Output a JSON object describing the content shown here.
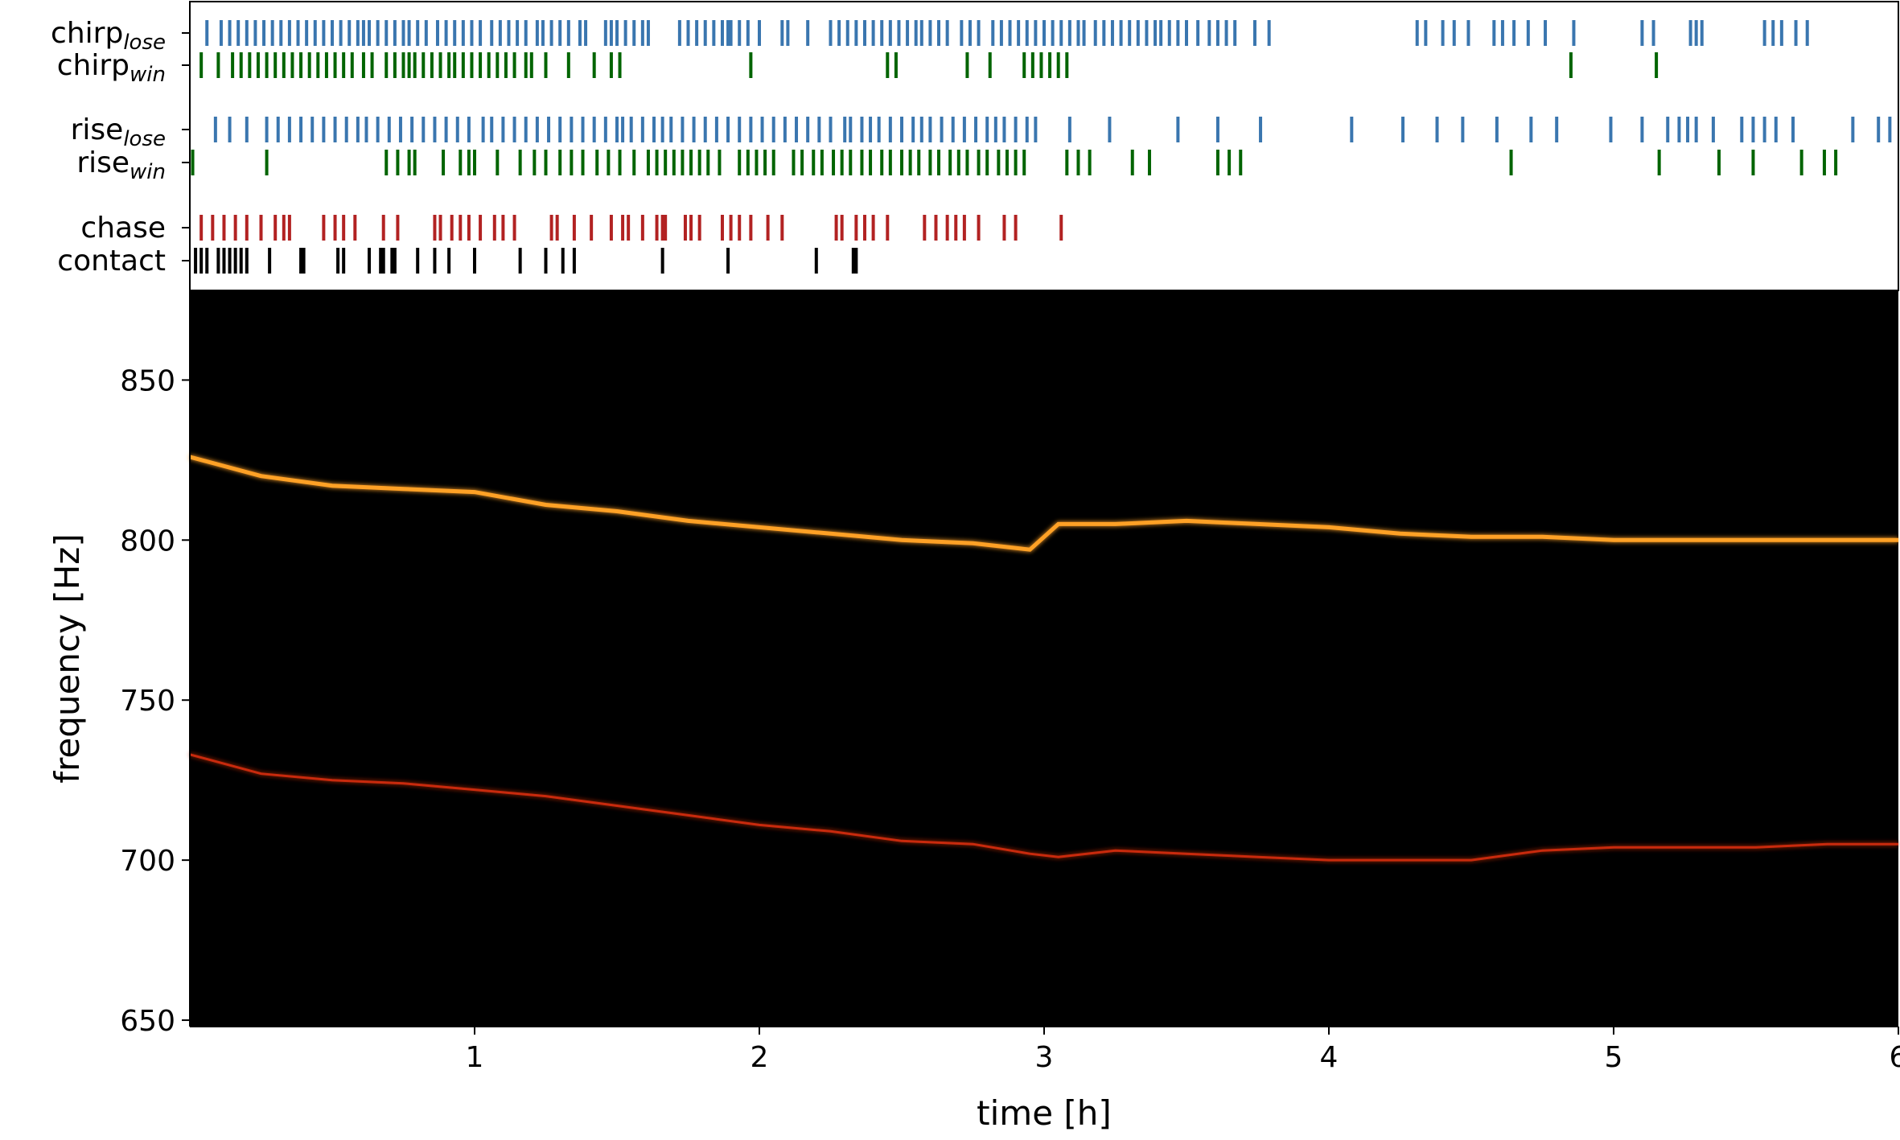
{
  "chart_data": [
    {
      "type": "eventplot",
      "xlim": [
        0,
        6
      ],
      "series": [
        {
          "name": "chirp",
          "subscript": "lose",
          "color": "#3a76af",
          "values": [
            0.06,
            0.11,
            0.14,
            0.17,
            0.2,
            0.23,
            0.26,
            0.29,
            0.32,
            0.35,
            0.38,
            0.41,
            0.44,
            0.47,
            0.5,
            0.53,
            0.56,
            0.59,
            0.61,
            0.63,
            0.66,
            0.69,
            0.72,
            0.75,
            0.77,
            0.8,
            0.83,
            0.87,
            0.9,
            0.93,
            0.96,
            0.99,
            1.02,
            1.06,
            1.09,
            1.12,
            1.15,
            1.18,
            1.22,
            1.24,
            1.27,
            1.3,
            1.33,
            1.37,
            1.39,
            1.46,
            1.48,
            1.5,
            1.53,
            1.56,
            1.59,
            1.61,
            1.72,
            1.75,
            1.78,
            1.81,
            1.84,
            1.87,
            1.89,
            1.9,
            1.93,
            1.96,
            2.0,
            2.08,
            2.1,
            2.17,
            2.25,
            2.28,
            2.31,
            2.34,
            2.37,
            2.4,
            2.43,
            2.46,
            2.49,
            2.52,
            2.55,
            2.57,
            2.6,
            2.63,
            2.66,
            2.71,
            2.74,
            2.77,
            2.82,
            2.85,
            2.88,
            2.91,
            2.94,
            2.97,
            3.0,
            3.03,
            3.06,
            3.09,
            3.12,
            3.14,
            3.18,
            3.21,
            3.24,
            3.27,
            3.3,
            3.33,
            3.36,
            3.39,
            3.41,
            3.44,
            3.47,
            3.5,
            3.54,
            3.58,
            3.61,
            3.64,
            3.67,
            3.74,
            3.79,
            4.31,
            4.34,
            4.4,
            4.44,
            4.49,
            4.58,
            4.61,
            4.65,
            4.7,
            4.76,
            4.86,
            5.1,
            5.14,
            5.27,
            5.29,
            5.31,
            5.53,
            5.56,
            5.59,
            5.64,
            5.68
          ]
        },
        {
          "name": "chirp",
          "subscript": "win",
          "color": "#006400",
          "values": [
            0.04,
            0.1,
            0.15,
            0.18,
            0.21,
            0.24,
            0.27,
            0.3,
            0.33,
            0.36,
            0.39,
            0.42,
            0.45,
            0.48,
            0.51,
            0.54,
            0.57,
            0.61,
            0.64,
            0.69,
            0.72,
            0.75,
            0.77,
            0.79,
            0.82,
            0.85,
            0.88,
            0.91,
            0.93,
            0.96,
            0.99,
            1.02,
            1.05,
            1.08,
            1.11,
            1.14,
            1.18,
            1.2,
            1.25,
            1.33,
            1.42,
            1.48,
            1.51,
            1.97,
            2.45,
            2.48,
            2.73,
            2.81,
            2.93,
            2.96,
            2.99,
            3.02,
            3.05,
            3.08,
            4.85,
            5.15
          ]
        },
        {
          "name": "rise",
          "subscript": "lose",
          "color": "#3a76af",
          "values": [
            0.09,
            0.14,
            0.2,
            0.27,
            0.31,
            0.35,
            0.39,
            0.43,
            0.47,
            0.51,
            0.55,
            0.59,
            0.62,
            0.66,
            0.7,
            0.74,
            0.78,
            0.82,
            0.86,
            0.9,
            0.94,
            0.98,
            1.03,
            1.06,
            1.1,
            1.14,
            1.18,
            1.22,
            1.26,
            1.3,
            1.34,
            1.38,
            1.42,
            1.46,
            1.5,
            1.52,
            1.55,
            1.59,
            1.63,
            1.66,
            1.69,
            1.73,
            1.77,
            1.81,
            1.85,
            1.89,
            1.93,
            1.97,
            2.01,
            2.05,
            2.09,
            2.13,
            2.17,
            2.21,
            2.25,
            2.3,
            2.32,
            2.36,
            2.39,
            2.42,
            2.46,
            2.5,
            2.54,
            2.57,
            2.6,
            2.64,
            2.68,
            2.72,
            2.76,
            2.8,
            2.83,
            2.86,
            2.9,
            2.94,
            2.97,
            3.09,
            3.23,
            3.47,
            3.61,
            3.76,
            4.08,
            4.26,
            4.38,
            4.47,
            4.59,
            4.71,
            4.8,
            4.99,
            5.1,
            5.19,
            5.23,
            5.26,
            5.29,
            5.35,
            5.45,
            5.49,
            5.53,
            5.57,
            5.63,
            5.84,
            5.93,
            5.97
          ]
        },
        {
          "name": "rise",
          "subscript": "win",
          "color": "#006400",
          "values": [
            0.01,
            0.27,
            0.69,
            0.73,
            0.77,
            0.79,
            0.89,
            0.95,
            0.98,
            1.0,
            1.08,
            1.16,
            1.21,
            1.25,
            1.3,
            1.34,
            1.38,
            1.43,
            1.47,
            1.51,
            1.56,
            1.61,
            1.64,
            1.67,
            1.7,
            1.73,
            1.76,
            1.79,
            1.82,
            1.86,
            1.93,
            1.96,
            1.99,
            2.02,
            2.05,
            2.12,
            2.15,
            2.19,
            2.22,
            2.26,
            2.29,
            2.32,
            2.36,
            2.39,
            2.43,
            2.46,
            2.5,
            2.53,
            2.56,
            2.6,
            2.63,
            2.67,
            2.7,
            2.73,
            2.77,
            2.8,
            2.84,
            2.87,
            2.9,
            2.93,
            3.08,
            3.12,
            3.16,
            3.31,
            3.37,
            3.61,
            3.65,
            3.69,
            4.64,
            5.16,
            5.37,
            5.49,
            5.66,
            5.74,
            5.78
          ]
        },
        {
          "name": "chase",
          "color": "#b22222",
          "values": [
            0.04,
            0.08,
            0.12,
            0.16,
            0.2,
            0.25,
            0.3,
            0.33,
            0.35,
            0.47,
            0.51,
            0.54,
            0.58,
            0.68,
            0.73,
            0.86,
            0.88,
            0.92,
            0.95,
            0.98,
            1.02,
            1.07,
            1.1,
            1.14,
            1.27,
            1.29,
            1.35,
            1.41,
            1.48,
            1.52,
            1.54,
            1.59,
            1.64,
            1.66,
            1.67,
            1.74,
            1.76,
            1.79,
            1.87,
            1.9,
            1.93,
            1.97,
            2.03,
            2.08,
            2.27,
            2.29,
            2.34,
            2.37,
            2.4,
            2.45,
            2.58,
            2.62,
            2.66,
            2.69,
            2.72,
            2.77,
            2.86,
            2.9,
            3.06
          ]
        },
        {
          "name": "contact",
          "color": "#000000",
          "values": [
            0.02,
            0.04,
            0.06,
            0.1,
            0.12,
            0.14,
            0.16,
            0.18,
            0.2,
            0.28,
            0.39,
            0.4,
            0.52,
            0.54,
            0.63,
            0.67,
            0.68,
            0.71,
            0.72,
            0.8,
            0.86,
            0.91,
            1.0,
            1.16,
            1.25,
            1.31,
            1.35,
            1.66,
            1.89,
            2.2,
            2.33,
            2.34
          ]
        }
      ]
    },
    {
      "type": "spectrogram",
      "xlabel": "time [h]",
      "ylabel": "frequency [Hz]",
      "xlim": [
        0,
        6
      ],
      "ylim": [
        648,
        878
      ],
      "xticks": [
        1,
        2,
        3,
        4,
        5,
        6
      ],
      "yticks": [
        650,
        700,
        750,
        800,
        850
      ],
      "background": "#000000",
      "x": [
        0,
        0.25,
        0.5,
        0.75,
        1,
        1.25,
        1.5,
        1.75,
        2,
        2.25,
        2.5,
        2.75,
        2.95,
        3.05,
        3.25,
        3.5,
        3.75,
        4,
        4.25,
        4.5,
        4.75,
        5,
        5.25,
        5.5,
        5.75,
        6
      ],
      "series": [
        {
          "color": "#ffa126",
          "values": [
            826,
            820,
            817,
            816,
            815,
            811,
            809,
            806,
            804,
            802,
            800,
            799,
            797,
            805,
            805,
            806,
            805,
            804,
            802,
            801,
            801,
            800,
            800,
            800,
            800,
            800
          ]
        },
        {
          "color": "#c8290f",
          "values": [
            733,
            727,
            725,
            724,
            722,
            720,
            717,
            714,
            711,
            709,
            706,
            705,
            702,
            701,
            703,
            702,
            701,
            700,
            700,
            700,
            703,
            704,
            704,
            704,
            705,
            705
          ]
        }
      ]
    }
  ]
}
